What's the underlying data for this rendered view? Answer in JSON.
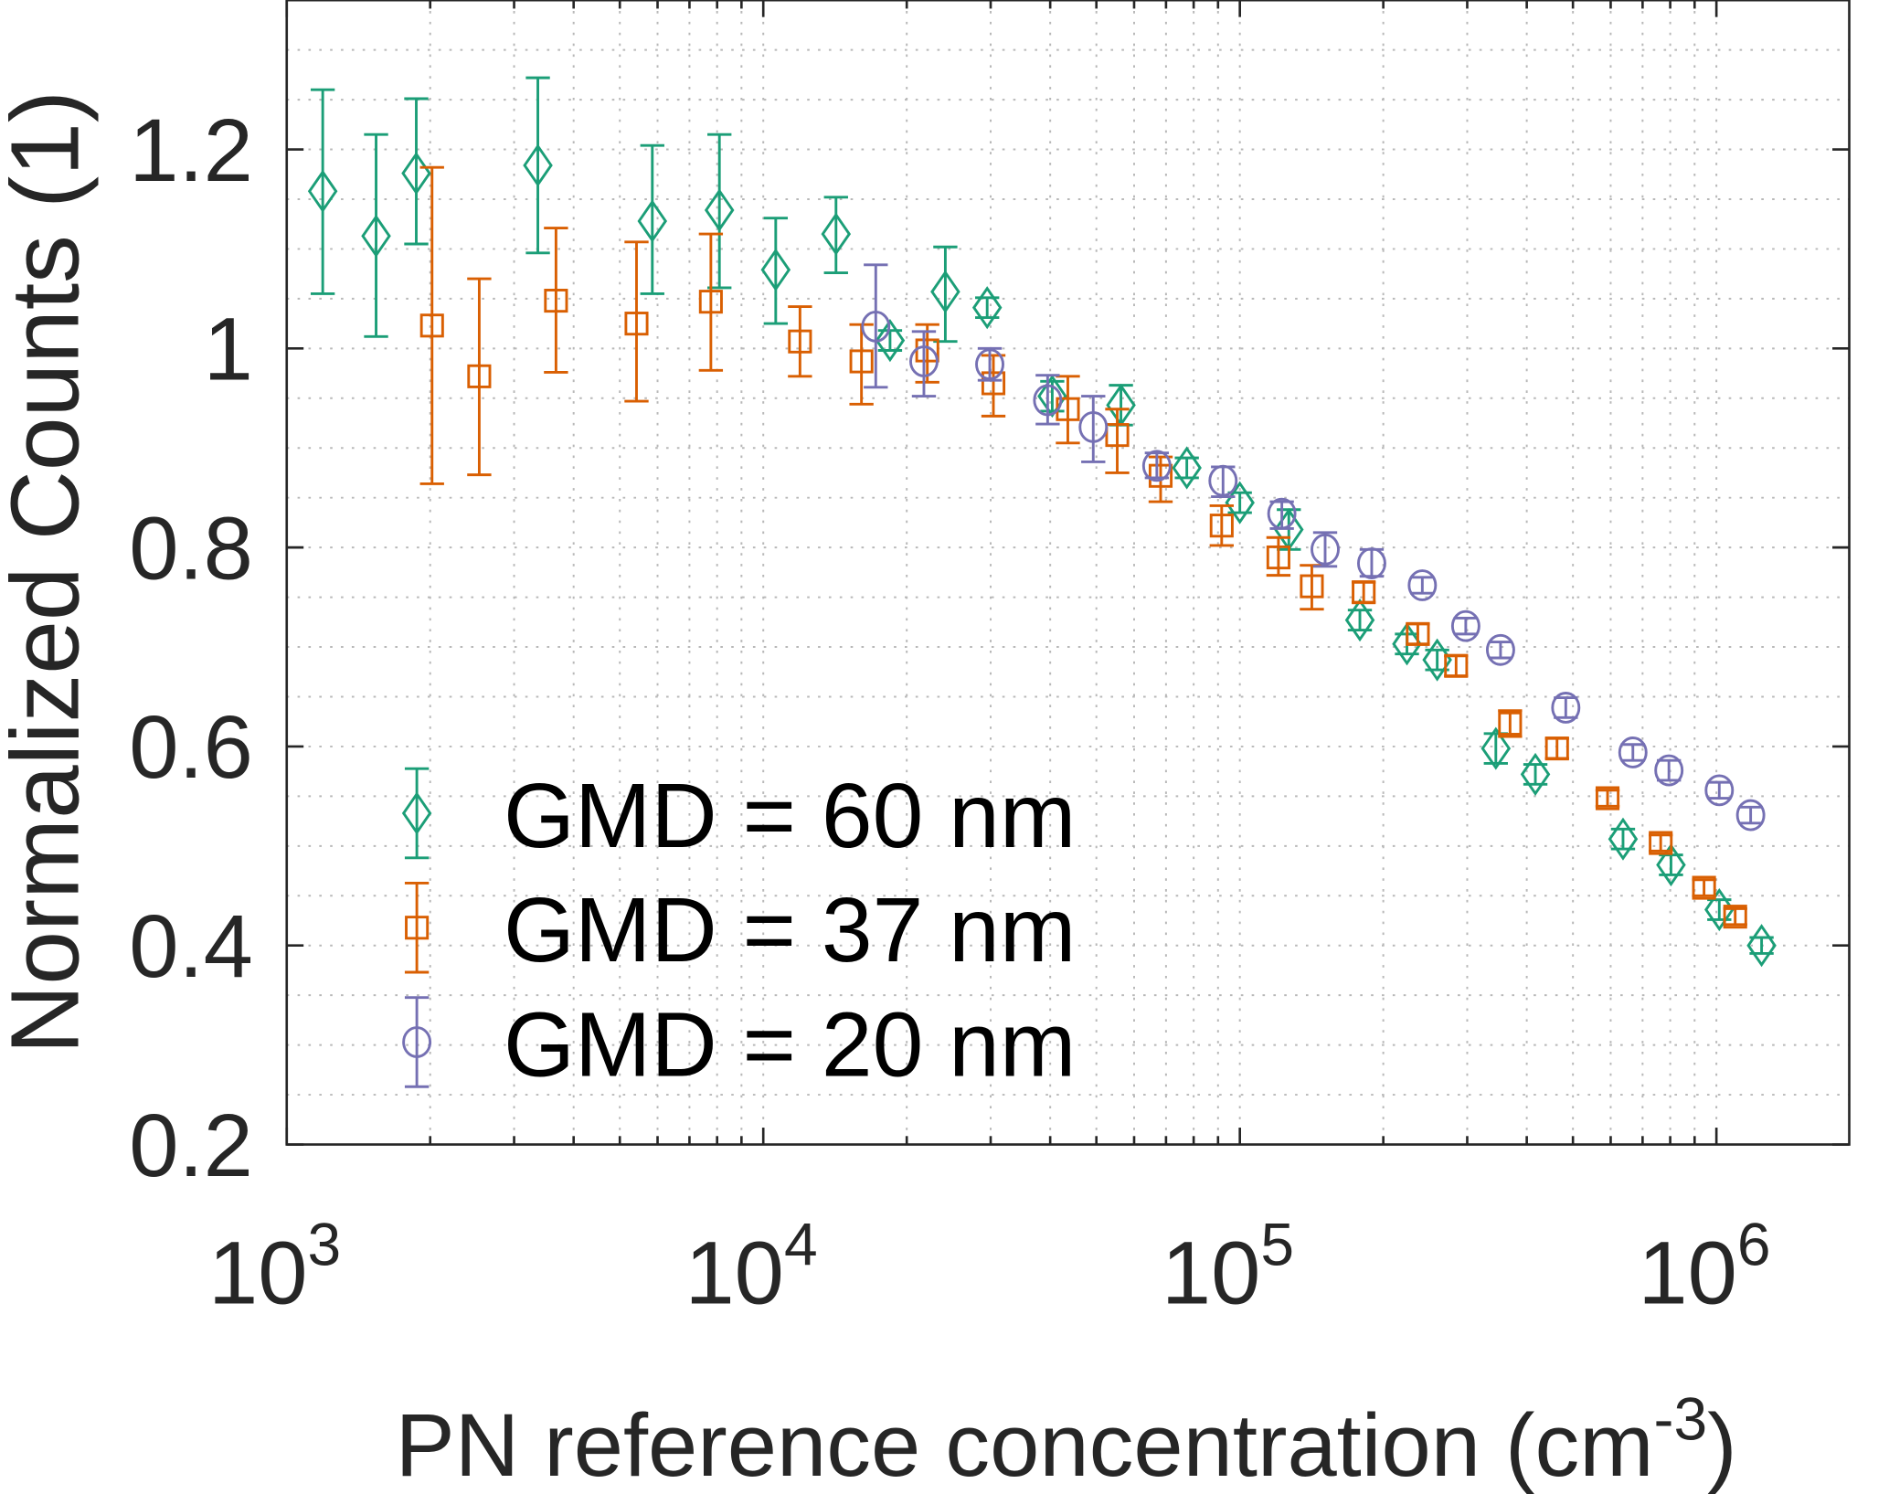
{
  "chart_data": {
    "type": "scatter",
    "title": "",
    "xlabel": "PN reference concentration (cm",
    "xlabel_sup": "-3",
    "xlabel_close": ")",
    "ylabel": "Normalized Counts (1)",
    "xscale": "log",
    "xlim": [
      1000,
      1900000
    ],
    "ylim": [
      0.2,
      1.35
    ],
    "grid": true,
    "minor_grid": true,
    "legend_position": "bottom-left",
    "x_ticks": [
      {
        "base": "10",
        "exp": "3",
        "value": 1000
      },
      {
        "base": "10",
        "exp": "4",
        "value": 10000
      },
      {
        "base": "10",
        "exp": "5",
        "value": 100000
      },
      {
        "base": "10",
        "exp": "6",
        "value": 1000000
      }
    ],
    "y_ticks": [
      {
        "label": "0.2",
        "value": 0.2
      },
      {
        "label": "0.4",
        "value": 0.4
      },
      {
        "label": "0.6",
        "value": 0.6
      },
      {
        "label": "0.8",
        "value": 0.8
      },
      {
        "label": "1",
        "value": 1.0
      },
      {
        "label": "1.2",
        "value": 1.2
      }
    ],
    "series_format": "[x, y, y_low, y_high]",
    "series": [
      {
        "name": "GMD = 60 nm",
        "marker": "diamond",
        "color": "#1b9e77",
        "points": [
          [
            1190,
            1.158,
            1.055,
            1.26
          ],
          [
            1540,
            1.113,
            1.012,
            1.215
          ],
          [
            1870,
            1.176,
            1.105,
            1.251
          ],
          [
            3365,
            1.184,
            1.096,
            1.272
          ],
          [
            5850,
            1.128,
            1.055,
            1.204
          ],
          [
            8090,
            1.139,
            1.061,
            1.215
          ],
          [
            10620,
            1.079,
            1.025,
            1.131
          ],
          [
            14210,
            1.115,
            1.076,
            1.152
          ],
          [
            18450,
            1.008,
            0.998,
            1.018
          ],
          [
            24100,
            1.057,
            1.007,
            1.102
          ],
          [
            29500,
            1.041,
            1.031,
            1.051
          ],
          [
            40400,
            0.952,
            0.937,
            0.967
          ],
          [
            56300,
            0.943,
            0.923,
            0.963
          ],
          [
            77400,
            0.88,
            0.87,
            0.89
          ],
          [
            100000,
            0.845,
            0.835,
            0.855
          ],
          [
            126700,
            0.818,
            0.798,
            0.838
          ],
          [
            178600,
            0.727,
            0.717,
            0.737
          ],
          [
            224200,
            0.703,
            0.693,
            0.713
          ],
          [
            259500,
            0.687,
            0.677,
            0.697
          ],
          [
            344500,
            0.598,
            0.583,
            0.613
          ],
          [
            417000,
            0.572,
            0.562,
            0.582
          ],
          [
            636900,
            0.507,
            0.497,
            0.517
          ],
          [
            803000,
            0.481,
            0.471,
            0.491
          ],
          [
            1014000,
            0.436,
            0.426,
            0.446
          ],
          [
            1244000,
            0.4,
            0.392,
            0.408
          ]
        ]
      },
      {
        "name": "GMD = 37 nm",
        "marker": "square",
        "color": "#d95f02",
        "points": [
          [
            2018,
            1.023,
            0.864,
            1.182
          ],
          [
            2535,
            0.972,
            0.873,
            1.07
          ],
          [
            3673,
            1.048,
            0.976,
            1.121
          ],
          [
            5420,
            1.025,
            0.947,
            1.107
          ],
          [
            7763,
            1.047,
            0.978,
            1.115
          ],
          [
            11940,
            1.007,
            0.972,
            1.042
          ],
          [
            16070,
            0.987,
            0.944,
            1.024
          ],
          [
            22090,
            0.998,
            0.966,
            1.024
          ],
          [
            30400,
            0.965,
            0.932,
            0.993
          ],
          [
            43560,
            0.939,
            0.905,
            0.972
          ],
          [
            55300,
            0.913,
            0.875,
            0.939
          ],
          [
            68200,
            0.872,
            0.846,
            0.891
          ],
          [
            91600,
            0.822,
            0.802,
            0.842
          ],
          [
            120500,
            0.79,
            0.772,
            0.81
          ],
          [
            141600,
            0.761,
            0.738,
            0.782
          ],
          [
            181900,
            0.755,
            0.745,
            0.765
          ],
          [
            236300,
            0.713,
            0.703,
            0.723
          ],
          [
            284300,
            0.681,
            0.671,
            0.691
          ],
          [
            369000,
            0.623,
            0.61,
            0.636
          ],
          [
            463000,
            0.598,
            0.588,
            0.608
          ],
          [
            591000,
            0.548,
            0.54,
            0.556
          ],
          [
            764000,
            0.503,
            0.495,
            0.511
          ],
          [
            942000,
            0.458,
            0.45,
            0.466
          ],
          [
            1095000,
            0.429,
            0.421,
            0.437
          ]
        ]
      },
      {
        "name": "GMD = 20 nm",
        "marker": "circle",
        "color": "#7570b3",
        "points": [
          [
            17220,
            1.022,
            0.961,
            1.084
          ],
          [
            21730,
            0.987,
            0.952,
            1.017
          ],
          [
            29870,
            0.984,
            0.968,
            1.0
          ],
          [
            39510,
            0.948,
            0.924,
            0.973
          ],
          [
            49250,
            0.921,
            0.886,
            0.952
          ],
          [
            66960,
            0.882,
            0.87,
            0.895
          ],
          [
            92200,
            0.867,
            0.851,
            0.881
          ],
          [
            122500,
            0.834,
            0.819,
            0.846
          ],
          [
            151000,
            0.798,
            0.781,
            0.815
          ],
          [
            189100,
            0.784,
            0.771,
            0.798
          ],
          [
            241500,
            0.762,
            0.754,
            0.77
          ],
          [
            297900,
            0.721,
            0.713,
            0.729
          ],
          [
            352400,
            0.697,
            0.689,
            0.705
          ],
          [
            483000,
            0.639,
            0.629,
            0.649
          ],
          [
            668000,
            0.594,
            0.586,
            0.602
          ],
          [
            795000,
            0.576,
            0.566,
            0.586
          ],
          [
            1014000,
            0.556,
            0.548,
            0.564
          ],
          [
            1180000,
            0.531,
            0.523,
            0.539
          ]
        ]
      }
    ]
  }
}
